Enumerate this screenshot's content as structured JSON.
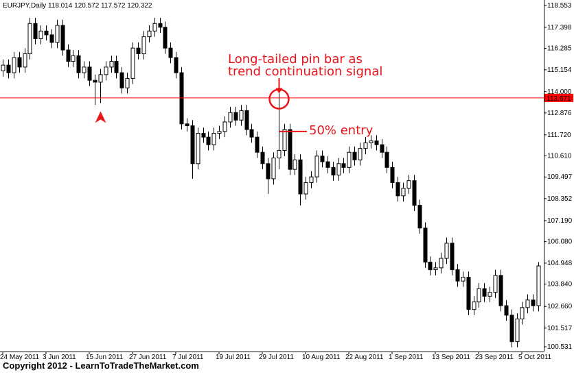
{
  "chart_data": {
    "type": "candlestick",
    "header": "EURJPY,Daily  118.014 120.572 117.572 120.322",
    "categories": [
      "24 May 2011",
      null,
      null,
      null,
      null,
      null,
      null,
      null,
      "3 Jun 2011",
      null,
      null,
      null,
      null,
      null,
      null,
      null,
      "15 Jun 2011",
      null,
      null,
      null,
      null,
      null,
      null,
      null,
      "27 Jun 2011",
      null,
      null,
      null,
      null,
      null,
      null,
      null,
      "7 Jul 2011",
      null,
      null,
      null,
      null,
      null,
      null,
      null,
      "19 Jul 2011",
      null,
      null,
      null,
      null,
      null,
      null,
      null,
      "29 Jul 2011",
      null,
      null,
      null,
      null,
      null,
      null,
      null,
      "10 Aug 2011",
      null,
      null,
      null,
      null,
      null,
      null,
      null,
      "22 Aug 2011",
      null,
      null,
      null,
      null,
      null,
      null,
      null,
      "1 Sep 2011",
      null,
      null,
      null,
      null,
      null,
      null,
      null,
      "13 Sep 2011",
      null,
      null,
      null,
      null,
      null,
      null,
      null,
      "23 Sep 2011",
      null,
      null,
      null,
      null,
      null,
      null,
      null,
      "5 Oct 2011",
      null,
      null,
      null
    ],
    "open": [
      115.1,
      115.4,
      115.0,
      115.8,
      115.3,
      116.0,
      117.6,
      116.8,
      117.2,
      117.0,
      116.6,
      117.5,
      116.2,
      115.6,
      115.9,
      115.0,
      115.3,
      114.6,
      114.5,
      114.9,
      115.3,
      115.6,
      115.0,
      114.2,
      114.7,
      116.3,
      116.0,
      116.9,
      117.2,
      117.6,
      117.4,
      116.3,
      115.8,
      115.0,
      112.3,
      112.2,
      110.2,
      111.8,
      111.6,
      111.2,
      111.8,
      111.9,
      112.4,
      112.9,
      112.5,
      113.0,
      112.0,
      111.6,
      110.8,
      110.2,
      109.4,
      110.5,
      110.9,
      112.0,
      109.9,
      110.4,
      108.6,
      109.2,
      109.5,
      110.6,
      110.3,
      110.0,
      109.6,
      110.2,
      110.0,
      110.8,
      110.4,
      111.0,
      111.3,
      111.4,
      111.2,
      110.8,
      110.0,
      109.2,
      108.5,
      108.9,
      109.3,
      108.0,
      106.8,
      105.0,
      104.6,
      104.7,
      105.2,
      106.0,
      104.6,
      104.0,
      104.2,
      102.5,
      102.9,
      103.6,
      103.2,
      103.4,
      104.3,
      102.7,
      102.2,
      100.8,
      102.0,
      102.6,
      103.0,
      102.7
    ],
    "high": [
      115.7,
      115.7,
      116.1,
      116.1,
      116.3,
      117.9,
      117.9,
      117.5,
      117.5,
      117.3,
      117.8,
      117.8,
      116.5,
      116.2,
      116.2,
      115.6,
      115.6,
      114.9,
      115.2,
      115.6,
      115.9,
      115.9,
      115.3,
      115.0,
      116.6,
      116.6,
      117.2,
      117.5,
      117.9,
      117.9,
      117.7,
      116.6,
      116.1,
      115.3,
      112.6,
      112.5,
      112.1,
      112.1,
      111.9,
      112.1,
      112.2,
      112.7,
      113.2,
      113.2,
      113.3,
      113.3,
      112.3,
      111.9,
      111.1,
      110.5,
      110.8,
      113.9,
      112.3,
      112.3,
      110.7,
      110.7,
      109.5,
      109.8,
      110.9,
      110.9,
      110.6,
      110.3,
      110.5,
      110.5,
      111.1,
      111.1,
      111.3,
      111.6,
      111.7,
      111.7,
      111.5,
      111.1,
      110.3,
      109.5,
      109.2,
      109.6,
      109.6,
      108.3,
      107.1,
      105.3,
      105.0,
      105.5,
      106.3,
      106.3,
      104.9,
      104.5,
      104.5,
      103.2,
      103.9,
      103.9,
      103.7,
      104.6,
      104.6,
      103.0,
      102.5,
      102.3,
      102.9,
      103.3,
      103.3,
      105.0
    ],
    "low": [
      114.8,
      114.7,
      114.7,
      115.0,
      115.0,
      115.7,
      116.5,
      116.5,
      116.7,
      116.3,
      116.3,
      115.9,
      115.3,
      115.3,
      114.7,
      114.7,
      114.3,
      113.3,
      113.4,
      114.6,
      115.0,
      114.7,
      113.9,
      113.9,
      114.4,
      115.7,
      115.7,
      116.6,
      116.9,
      117.1,
      116.0,
      115.5,
      114.7,
      112.0,
      111.9,
      109.4,
      109.9,
      111.3,
      110.9,
      110.9,
      111.5,
      111.6,
      112.1,
      112.2,
      112.2,
      111.7,
      111.3,
      110.5,
      109.9,
      108.6,
      109.1,
      109.9,
      110.6,
      109.6,
      109.6,
      108.0,
      108.3,
      108.9,
      109.2,
      110.0,
      109.7,
      109.3,
      109.3,
      109.7,
      109.7,
      110.1,
      110.1,
      110.7,
      111.0,
      110.9,
      110.5,
      109.7,
      108.9,
      108.2,
      108.2,
      108.6,
      107.7,
      106.5,
      104.7,
      104.3,
      104.3,
      104.4,
      104.9,
      104.3,
      103.7,
      103.7,
      102.2,
      102.2,
      102.6,
      102.9,
      102.9,
      103.1,
      102.4,
      101.9,
      100.5,
      100.5,
      101.7,
      102.3,
      102.4,
      102.4
    ],
    "close": [
      115.4,
      115.0,
      115.8,
      115.3,
      116.0,
      117.6,
      116.8,
      117.2,
      117.0,
      116.6,
      117.5,
      116.2,
      115.6,
      115.9,
      115.0,
      115.3,
      114.6,
      114.5,
      114.9,
      115.3,
      115.6,
      115.0,
      114.2,
      114.7,
      116.3,
      116.0,
      116.9,
      117.2,
      117.6,
      117.4,
      116.3,
      115.8,
      115.0,
      112.3,
      112.2,
      110.2,
      111.8,
      111.6,
      111.2,
      111.8,
      111.9,
      112.4,
      112.9,
      112.5,
      113.0,
      112.0,
      111.6,
      110.8,
      110.2,
      109.4,
      110.5,
      110.9,
      112.0,
      109.9,
      110.4,
      108.6,
      109.2,
      109.5,
      110.6,
      110.3,
      110.0,
      109.6,
      110.2,
      110.0,
      110.8,
      110.4,
      111.0,
      111.3,
      111.4,
      111.2,
      110.8,
      110.0,
      109.2,
      108.5,
      108.9,
      109.3,
      108.0,
      106.8,
      105.0,
      104.6,
      104.7,
      105.2,
      106.0,
      104.6,
      104.0,
      104.2,
      102.5,
      102.9,
      103.6,
      103.2,
      103.4,
      104.3,
      102.7,
      102.2,
      100.8,
      102.0,
      102.6,
      103.0,
      102.7,
      104.8
    ],
    "ylim": [
      100.28,
      118.84
    ],
    "yticks": [
      118.553,
      117.398,
      116.285,
      115.154,
      {
        "value": 114,
        "label": "114.000"
      },
      112.876,
      {
        "value": 111.72,
        "label": "111.720"
      },
      {
        "value": 110.61,
        "label": "110.610"
      },
      109.497,
      108.352,
      {
        "value": 107.19,
        "label": "107.190"
      },
      {
        "value": 106.08,
        "label": "106.080"
      },
      104.948,
      {
        "value": 103.84,
        "label": "103.840"
      },
      {
        "value": 102.66,
        "label": "102.660"
      },
      101.517,
      100.531
    ],
    "current_price": 113.671,
    "price_line_color": "#ff0000",
    "up_color": "#ffffff",
    "down_color": "#000000",
    "annotations": [
      "Long-tailed pin bar as",
      "trend continuation signal",
      "50% entry"
    ],
    "footer": "Copyright 2012 - LearnToTradeTheMarket.com"
  }
}
